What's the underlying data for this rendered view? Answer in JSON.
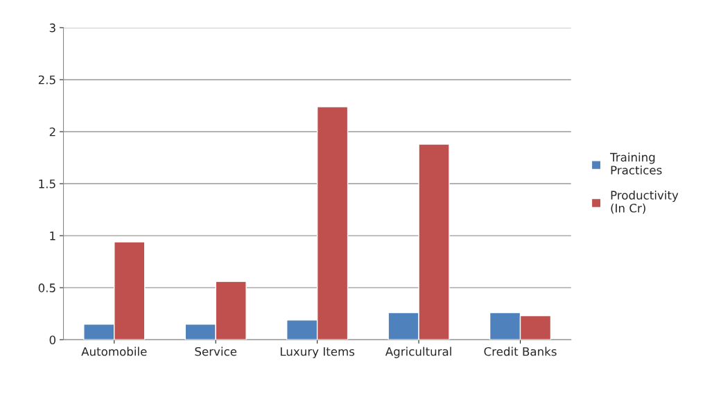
{
  "chart_data": {
    "type": "bar",
    "categories": [
      "Automobile",
      "Service",
      "Luxury Items",
      "Agricultural",
      "Credit Banks"
    ],
    "series": [
      {
        "name": "Training Practices",
        "color": "#4f81bd",
        "values": [
          0.15,
          0.15,
          0.19,
          0.26,
          0.26
        ]
      },
      {
        "name": "Productivity (In Cr)",
        "color": "#c0504d",
        "values": [
          0.94,
          0.56,
          2.24,
          1.88,
          0.23
        ]
      }
    ],
    "ylim": [
      0,
      3
    ],
    "yticks": [
      0,
      0.5,
      1,
      1.5,
      2,
      2.5,
      3
    ],
    "grid": "y",
    "legend": "right"
  }
}
